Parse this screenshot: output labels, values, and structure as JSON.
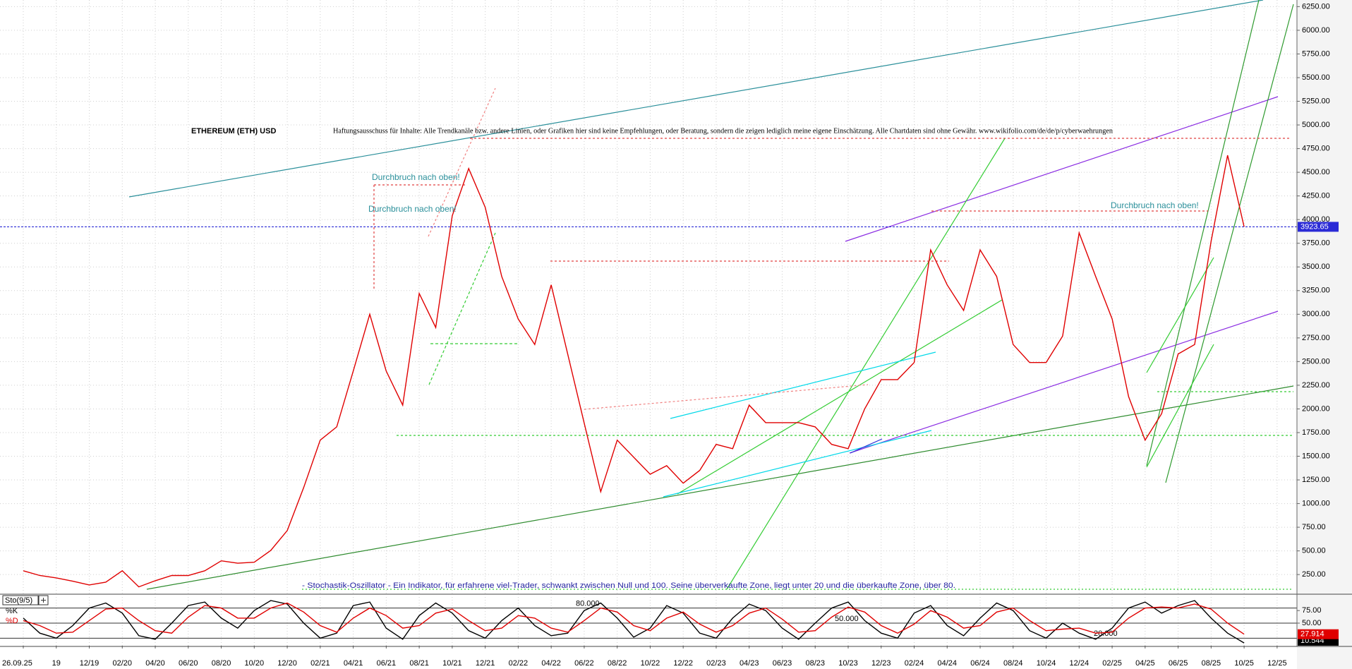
{
  "chart_data": [
    {
      "type": "line",
      "title": "ETHEREUM (ETH) USD",
      "subtitle": "Haftungsausschuss für Inhalte: Alle Trendkanäle bzw. andere Linien, oder Grafiken hier sind keine Empfehlungen, oder Beratung, sondern die zeigen lediglich meine eigene Einschätzung. Alle Chartdaten sind ohne Gewähr.  www.wikifolio.com/de/de/p/cyberwaehrungen",
      "annotations": [
        "Durchbruch nach oben!",
        "Durchbruch nach oben!",
        "Durchbruch nach oben!"
      ],
      "categories": [
        "26.09.25",
        null,
        "19",
        null,
        "12/19",
        null,
        "02/20",
        null,
        "04/20",
        null,
        "06/20",
        null,
        "08/20",
        null,
        "10/20",
        null,
        "12/20",
        null,
        "02/21",
        null,
        "04/21",
        null,
        "06/21",
        null,
        "08/21",
        null,
        "10/21",
        null,
        "12/21",
        null,
        "02/22",
        null,
        "04/22",
        null,
        "06/22",
        null,
        "08/22",
        null,
        "10/22",
        null,
        "12/22",
        null,
        "02/23",
        null,
        "04/23",
        null,
        "06/23",
        null,
        "08/23",
        null,
        "10/23",
        null,
        "12/23",
        null,
        "02/24",
        null,
        "04/24",
        null,
        "06/24",
        null,
        "08/24",
        null,
        "10/24",
        null,
        "12/24",
        null,
        "02/25",
        null,
        "04/25",
        null,
        "06/25",
        null,
        "08/25",
        null,
        "10/25",
        null,
        "12/25"
      ],
      "values": [
        290,
        240,
        215,
        180,
        140,
        170,
        290,
        120,
        185,
        240,
        240,
        290,
        395,
        370,
        380,
        505,
        715,
        1170,
        1670,
        1810,
        2400,
        3000,
        2400,
        2040,
        3220,
        2860,
        4040,
        4540,
        4130,
        3400,
        2950,
        2680,
        3310,
        2580,
        1850,
        1125,
        1670,
        1490,
        1310,
        1400,
        1215,
        1350,
        1625,
        1580,
        2040,
        1855,
        1855,
        1855,
        1810,
        1625,
        1580,
        2000,
        2310,
        2310,
        2490,
        3680,
        3310,
        3040,
        3680,
        3400,
        2680,
        2490,
        2490,
        2770,
        3860,
        3400,
        2950,
        2130,
        1670,
        1950,
        2580,
        2680,
        3770,
        4680,
        3923.65,
        null,
        null
      ],
      "color": "#e00000",
      "last_price": 3923.65,
      "last_price_color": "#2b2bd6",
      "ylim": [
        50,
        6320
      ],
      "yticks": [
        {
          "value": 250,
          "label": "250.00"
        },
        {
          "value": 500,
          "label": "500.00"
        },
        {
          "value": 750,
          "label": "750.00"
        },
        {
          "value": 1000,
          "label": "1000.00"
        },
        {
          "value": 1250,
          "label": "1250.00"
        },
        {
          "value": 1500,
          "label": "1500.00"
        },
        {
          "value": 1750,
          "label": "1750.00"
        },
        {
          "value": 2000,
          "label": "2000.00"
        },
        {
          "value": 2250,
          "label": "2250.00"
        },
        {
          "value": 2500,
          "label": "2500.00"
        },
        {
          "value": 2750,
          "label": "2750.00"
        },
        {
          "value": 3000,
          "label": "3000.00"
        },
        {
          "value": 3250,
          "label": "3250.00"
        },
        {
          "value": 3500,
          "label": "3500.00"
        },
        {
          "value": 3750,
          "label": "3750.00"
        },
        {
          "value": 4000,
          "label": "4000.00"
        },
        {
          "value": 4250,
          "label": "4250.00"
        },
        {
          "value": 4500,
          "label": "4500.00"
        },
        {
          "value": 4750,
          "label": "4750.00"
        },
        {
          "value": 5000,
          "label": "5000.00"
        },
        {
          "value": 5250,
          "label": "5250.00"
        },
        {
          "value": 5500,
          "label": "5500.00"
        },
        {
          "value": 5750,
          "label": "5750.00"
        },
        {
          "value": 6000,
          "label": "6000.00"
        },
        {
          "value": 6250,
          "label": "6250.00"
        }
      ],
      "grid": true
    },
    {
      "type": "line",
      "title": "Sto(9/5)",
      "subtitle": "- Stochastik-Oszillator - Ein Indikator, für erfahrene viel-Trader, schwankt zwischen Null und 100. Seine überverkaufte Zone, liegt unter 20 und die überkaufte Zone, über 80.",
      "series": [
        {
          "name": "%K",
          "color": "#000000",
          "values": [
            60,
            30,
            20,
            45,
            80,
            90,
            70,
            25,
            18,
            50,
            85,
            92,
            60,
            40,
            75,
            95,
            88,
            50,
            20,
            30,
            85,
            92,
            40,
            18,
            65,
            90,
            70,
            35,
            20,
            55,
            80,
            45,
            25,
            30,
            75,
            90,
            60,
            22,
            40,
            85,
            70,
            30,
            20,
            60,
            88,
            75,
            40,
            18,
            50,
            80,
            92,
            55,
            30,
            20,
            70,
            85,
            45,
            25,
            60,
            90,
            75,
            35,
            20,
            50,
            30,
            18,
            40,
            80,
            92,
            70,
            85,
            95,
            60,
            30,
            10.544,
            null,
            null
          ]
        },
        {
          "name": "%D",
          "color": "#e00000",
          "values": [
            55,
            45,
            30,
            32,
            55,
            78,
            80,
            55,
            35,
            30,
            62,
            85,
            80,
            60,
            60,
            80,
            90,
            72,
            45,
            32,
            60,
            80,
            65,
            40,
            45,
            70,
            78,
            55,
            35,
            40,
            65,
            60,
            40,
            32,
            55,
            80,
            72,
            45,
            35,
            60,
            72,
            48,
            32,
            45,
            70,
            80,
            58,
            32,
            35,
            62,
            82,
            72,
            45,
            30,
            48,
            75,
            62,
            40,
            45,
            72,
            80,
            55,
            35,
            38,
            40,
            30,
            32,
            60,
            80,
            82,
            80,
            88,
            78,
            50,
            27.914,
            null,
            null
          ]
        }
      ],
      "levels": [
        {
          "value": 80,
          "label": "80.000"
        },
        {
          "value": 50,
          "label": "50.000"
        },
        {
          "value": 20,
          "label": "20.000"
        }
      ],
      "ylim": [
        5,
        102
      ],
      "yticks": [
        {
          "value": 75,
          "label": "75.00"
        },
        {
          "value": 50,
          "label": "50.00"
        }
      ]
    }
  ]
}
